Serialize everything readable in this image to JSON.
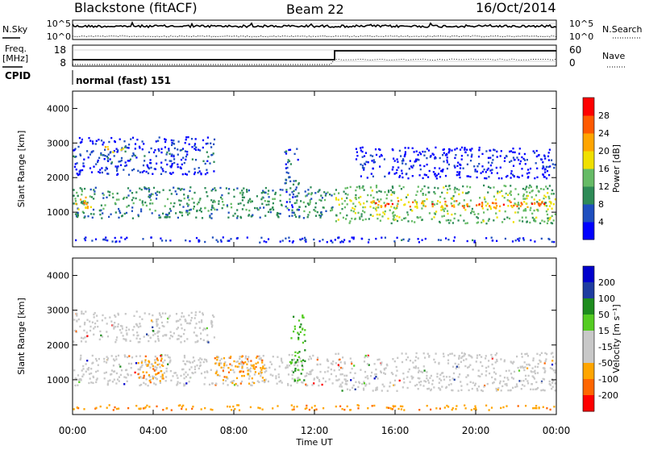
{
  "header": {
    "station": "Blackstone (fitACF)",
    "beam": "Beam 22",
    "date": "16/Oct/2014"
  },
  "labels": {
    "nsky": "N.Sky",
    "nsearch": "N.Search",
    "freq_line1": "Freq.",
    "freq_line2": "[MHz]",
    "nave": "Nave",
    "cpid": "CPID",
    "cpid_value": "normal (fast) 151"
  },
  "noise_panel": {
    "left_ticks": [
      "10^5",
      "10^0"
    ],
    "right_ticks": [
      "10^5",
      "10^0"
    ]
  },
  "freq_panel": {
    "left_ticks": [
      "18",
      "8"
    ],
    "right_ticks": [
      "60",
      "0"
    ],
    "freq_step_time_h": 13.0
  },
  "colors": {
    "power": [
      "#0000ff",
      "#1f4fbf",
      "#2e8b57",
      "#66bb66",
      "#f0e000",
      "#ffa500",
      "#ff5a00",
      "#ff0000"
    ],
    "velocity": [
      "#ff0000",
      "#ff6600",
      "#ffa500",
      "#c8c8c8",
      "#c8c8c8",
      "#55cc22",
      "#1e8c1e",
      "#1e3ca0",
      "#0000cc"
    ]
  },
  "chart_data": [
    {
      "type": "heatmap",
      "name": "power",
      "xlabel": "Time UT",
      "ylabel": "Slant Range [km]",
      "xlim": [
        0,
        24
      ],
      "ylim": [
        0,
        4500
      ],
      "x_ticks": [
        "00:00",
        "04:00",
        "08:00",
        "12:00",
        "16:00",
        "20:00",
        "00:00"
      ],
      "x_tick_values": [
        0,
        4,
        8,
        12,
        16,
        20,
        24
      ],
      "y_ticks": [
        1000,
        2000,
        3000,
        4000
      ],
      "colorbar": {
        "label": "Power [dB]",
        "ticks": [
          4,
          8,
          12,
          16,
          20,
          24,
          28
        ],
        "range": [
          0,
          32
        ]
      },
      "bands": [
        {
          "t_start": 0,
          "t_end": 13,
          "r_low": 850,
          "r_high": 1750,
          "level": 12
        },
        {
          "t_start": 0,
          "t_end": 1,
          "r_low": 1100,
          "r_high": 1500,
          "level": 22
        },
        {
          "t_start": 13,
          "t_end": 24,
          "r_low": 700,
          "r_high": 1800,
          "level": 16
        },
        {
          "t_start": 14,
          "t_end": 23.5,
          "r_low": 1150,
          "r_high": 1350,
          "level": 26
        },
        {
          "t_start": 0,
          "t_end": 7,
          "r_low": 2100,
          "r_high": 3200,
          "level": 6
        },
        {
          "t_start": 1.5,
          "t_end": 2.5,
          "r_low": 2750,
          "r_high": 2950,
          "level": 22
        },
        {
          "t_start": 14,
          "t_end": 24,
          "r_low": 2000,
          "r_high": 2900,
          "level": 4
        },
        {
          "t_start": 10.5,
          "t_end": 11.2,
          "r_low": 1000,
          "r_high": 2900,
          "level": 8
        },
        {
          "t_start": 0,
          "t_end": 24,
          "r_low": 150,
          "r_high": 300,
          "level": 5
        }
      ]
    },
    {
      "type": "heatmap",
      "name": "velocity",
      "xlabel": "Time UT",
      "ylabel": "Slant Range [km]",
      "xlim": [
        0,
        24
      ],
      "ylim": [
        0,
        4500
      ],
      "x_ticks": [
        "00:00",
        "04:00",
        "08:00",
        "12:00",
        "16:00",
        "20:00",
        "00:00"
      ],
      "x_tick_values": [
        0,
        4,
        8,
        12,
        16,
        20,
        24
      ],
      "y_ticks": [
        1000,
        2000,
        3000,
        4000
      ],
      "colorbar": {
        "label": "Velocity [m s⁻¹]",
        "ticks": [
          "200",
          "100",
          "50",
          "15",
          "-15",
          "-50",
          "-100",
          "-200"
        ]
      },
      "bands": [
        {
          "t_start": 0,
          "t_end": 13,
          "r_low": 850,
          "r_high": 1750,
          "level": "ground"
        },
        {
          "t_start": 3.2,
          "t_end": 4.5,
          "r_low": 900,
          "r_high": 1700,
          "level": "neg"
        },
        {
          "t_start": 7,
          "t_end": 9.5,
          "r_low": 900,
          "r_high": 1700,
          "level": "neg"
        },
        {
          "t_start": 10.8,
          "t_end": 11.5,
          "r_low": 900,
          "r_high": 2900,
          "level": "pos"
        },
        {
          "t_start": 13,
          "t_end": 24,
          "r_low": 700,
          "r_high": 1800,
          "level": "ground"
        },
        {
          "t_start": 0,
          "t_end": 7,
          "r_low": 2100,
          "r_high": 3000,
          "level": "ground"
        },
        {
          "t_start": 0,
          "t_end": 24,
          "r_low": 150,
          "r_high": 300,
          "level": "neg"
        }
      ]
    }
  ]
}
